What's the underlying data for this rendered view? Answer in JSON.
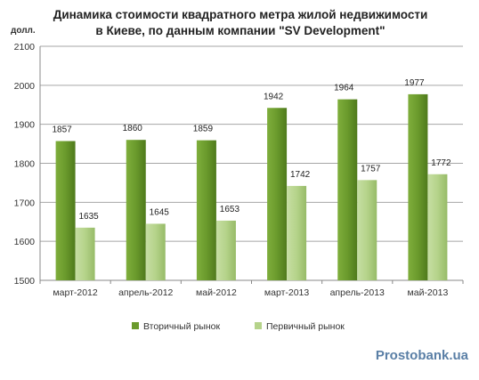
{
  "chart_data": {
    "type": "bar",
    "title": "Динамика стоимости квадратного метра жилой недвижимости",
    "subtitle": "в Киеве, по данным компании \"SV Development\"",
    "ylabel": "долл.",
    "ylim": [
      1500,
      2100
    ],
    "yticks": [
      1500,
      1600,
      1700,
      1800,
      1900,
      2000,
      2100
    ],
    "grid": true,
    "legend_position": "bottom",
    "categories": [
      "март-2012",
      "апрель-2012",
      "май-2012",
      "март-2013",
      "апрель-2013",
      "май-2013"
    ],
    "series": [
      {
        "name": "Вторичный рынок",
        "values": [
          1857,
          1860,
          1859,
          1942,
          1964,
          1977
        ],
        "color": "#6a9a2c"
      },
      {
        "name": "Первичный рынок",
        "values": [
          1635,
          1645,
          1653,
          1742,
          1757,
          1772
        ],
        "color": "#b5d38a"
      }
    ]
  },
  "watermark": "Prostobank.ua"
}
